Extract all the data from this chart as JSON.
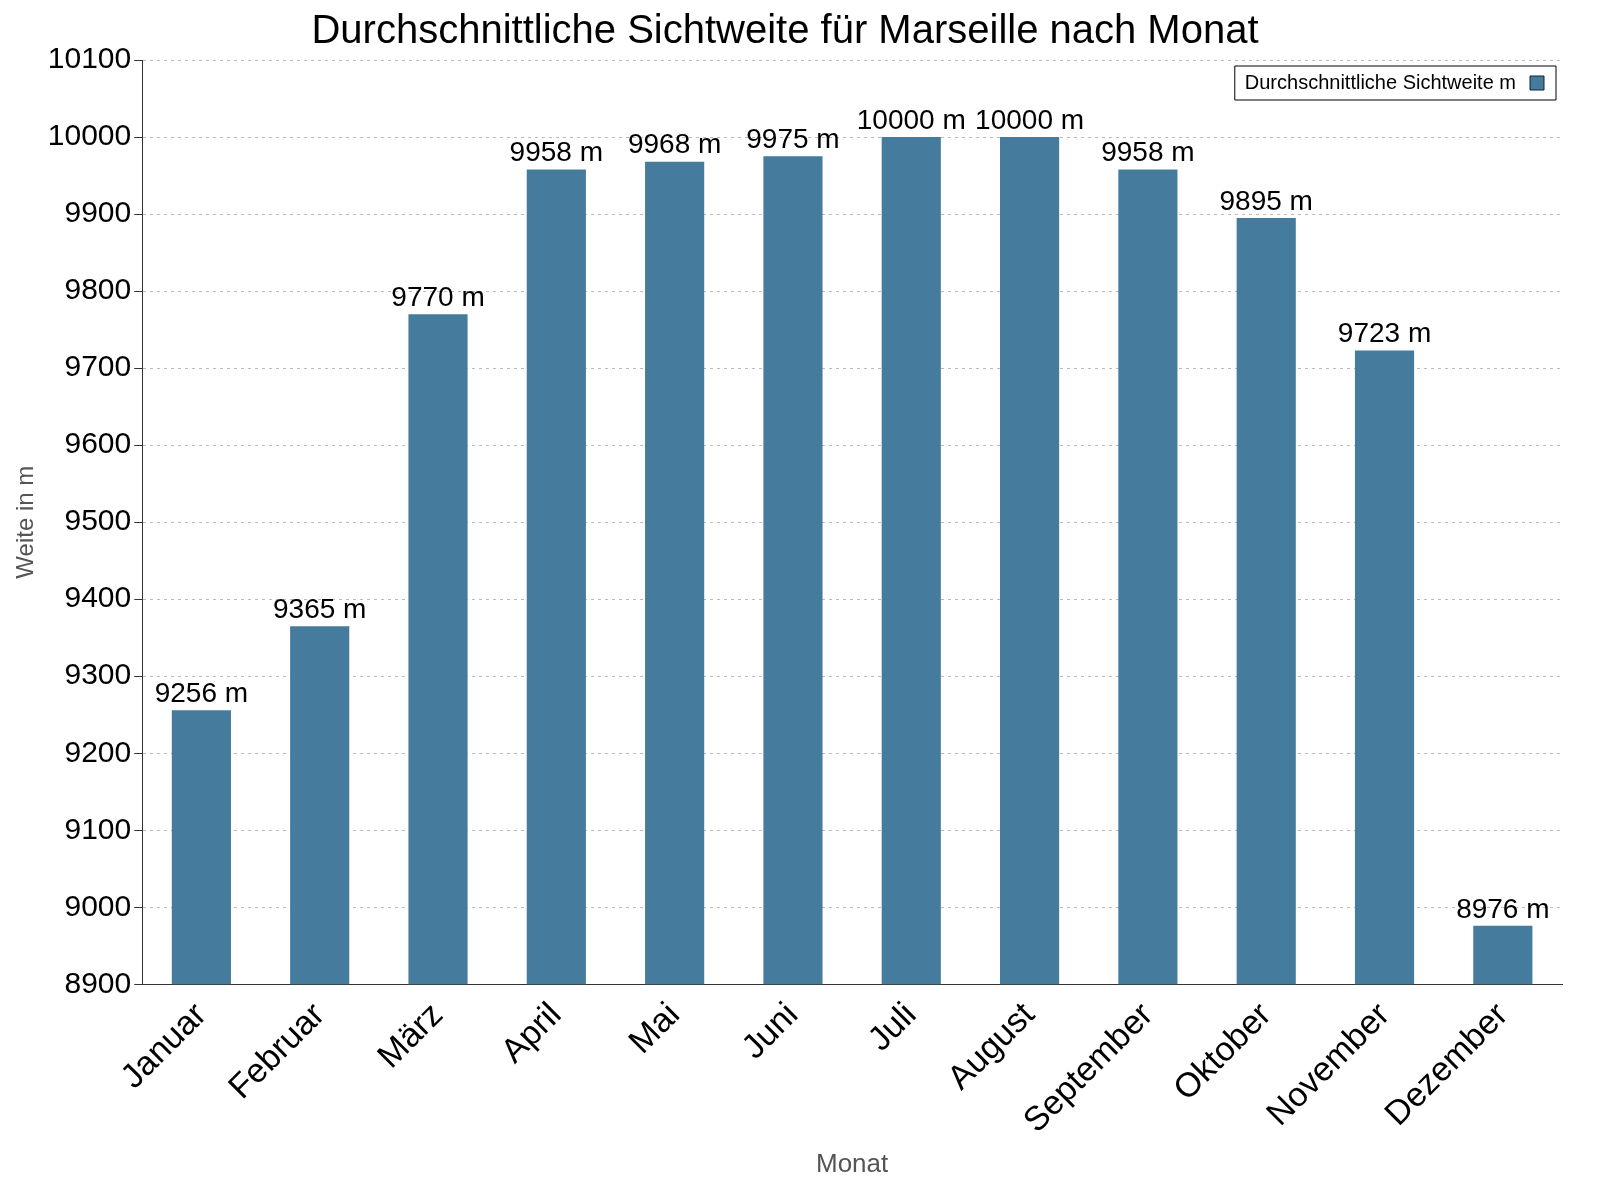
{
  "chart_data": {
    "type": "bar",
    "title": "Durchschnittliche Sichtweite für Marseille nach Monat",
    "xlabel": "Monat",
    "ylabel": "Weite in m",
    "categories": [
      "Januar",
      "Februar",
      "März",
      "April",
      "Mai",
      "Juni",
      "Juli",
      "August",
      "September",
      "Oktober",
      "November",
      "Dezember"
    ],
    "series": [
      {
        "name": "Durchschnittliche Sichtweite m",
        "color": "#457b9d",
        "values": [
          9256,
          9365,
          9770,
          9958,
          9968,
          9975,
          10000,
          10000,
          9958,
          9895,
          9723,
          8976
        ],
        "value_labels": [
          "9256 m",
          "9365 m",
          "9770 m",
          "9958 m",
          "9968 m",
          "9975 m",
          "10000 m",
          "10000 m",
          "9958 m",
          "9895 m",
          "9723 m",
          "8976 m"
        ]
      }
    ],
    "ylim": [
      8900,
      10100
    ],
    "yticks": [
      8900,
      9000,
      9100,
      9200,
      9300,
      9400,
      9500,
      9600,
      9700,
      9800,
      9900,
      10000,
      10100
    ],
    "grid": "y",
    "legend": "top right"
  }
}
